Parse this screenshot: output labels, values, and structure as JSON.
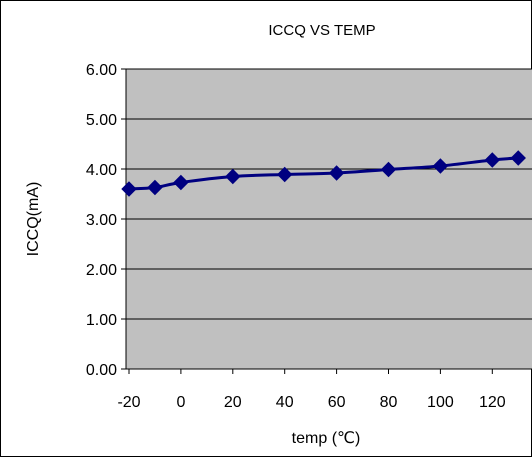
{
  "chart_data": {
    "type": "line",
    "title": "ICCQ VS TEMP",
    "xlabel": "temp (℃)",
    "ylabel": "ICCQ(mA)",
    "xlim": [
      -20,
      130
    ],
    "ylim": [
      0,
      6
    ],
    "x_ticks": [
      -20,
      0,
      20,
      40,
      60,
      80,
      100,
      120
    ],
    "x_tick_labels": [
      "-20",
      "0",
      "20",
      "40",
      "60",
      "80",
      "100",
      "120"
    ],
    "y_ticks": [
      0,
      1,
      2,
      3,
      4,
      5,
      6
    ],
    "y_tick_labels": [
      "0.00",
      "1.00",
      "2.00",
      "3.00",
      "4.00",
      "5.00",
      "6.00"
    ],
    "grid": true,
    "plot_background": "#c0c0c0",
    "series": [
      {
        "color": "#000080",
        "marker": "diamond",
        "x": [
          -20,
          -10,
          0,
          20,
          40,
          60,
          80,
          100,
          120,
          130
        ],
        "y": [
          3.6,
          3.63,
          3.73,
          3.85,
          3.89,
          3.92,
          3.99,
          4.06,
          4.18,
          4.22
        ]
      }
    ]
  }
}
